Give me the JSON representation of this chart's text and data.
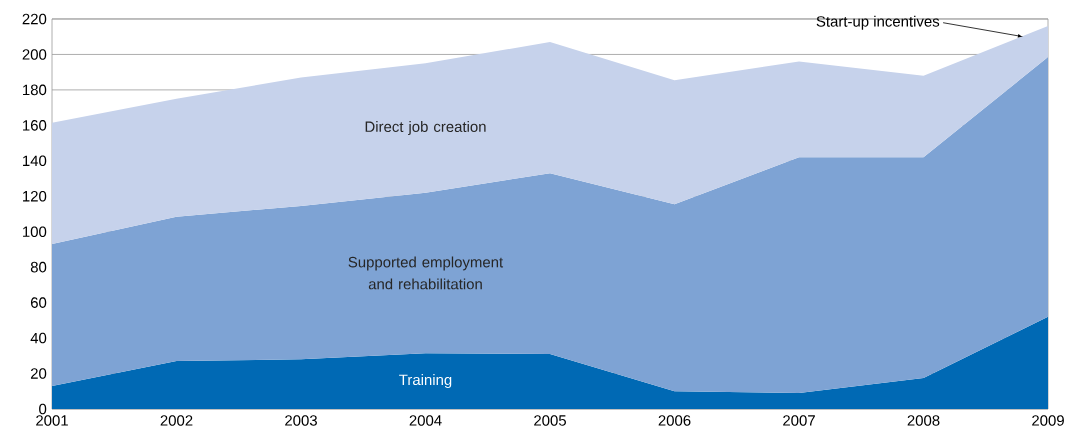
{
  "chart_data": {
    "type": "area",
    "stacked": true,
    "x": [
      2001,
      2002,
      2003,
      2004,
      2005,
      2006,
      2007,
      2008,
      2009
    ],
    "series": [
      {
        "name": "Training",
        "color": "#0069b4",
        "values": [
          13,
          27,
          28,
          31.5,
          31,
          10,
          9,
          17.5,
          52
        ]
      },
      {
        "name": "Supported employment and rehabilitation",
        "color": "#7ea3d4",
        "values": [
          80,
          81.5,
          86.5,
          90.5,
          102,
          105.5,
          133,
          124.5,
          146.5
        ]
      },
      {
        "name": "Direct job creation",
        "color": "#c6d2eb",
        "values": [
          68.5,
          66.5,
          72.5,
          73,
          74,
          70,
          54,
          46,
          17.5
        ]
      }
    ],
    "annotations": [
      {
        "text": "Start-up incentives",
        "x": 2008.8,
        "y": 210
      }
    ],
    "xlim": [
      2001,
      2009
    ],
    "xticks": [
      2001,
      2002,
      2003,
      2004,
      2005,
      2006,
      2007,
      2008,
      2009
    ],
    "ylim": [
      0,
      220
    ],
    "yticks": [
      0,
      20,
      40,
      60,
      80,
      100,
      120,
      140,
      160,
      180,
      200,
      220
    ],
    "grid": "y"
  }
}
